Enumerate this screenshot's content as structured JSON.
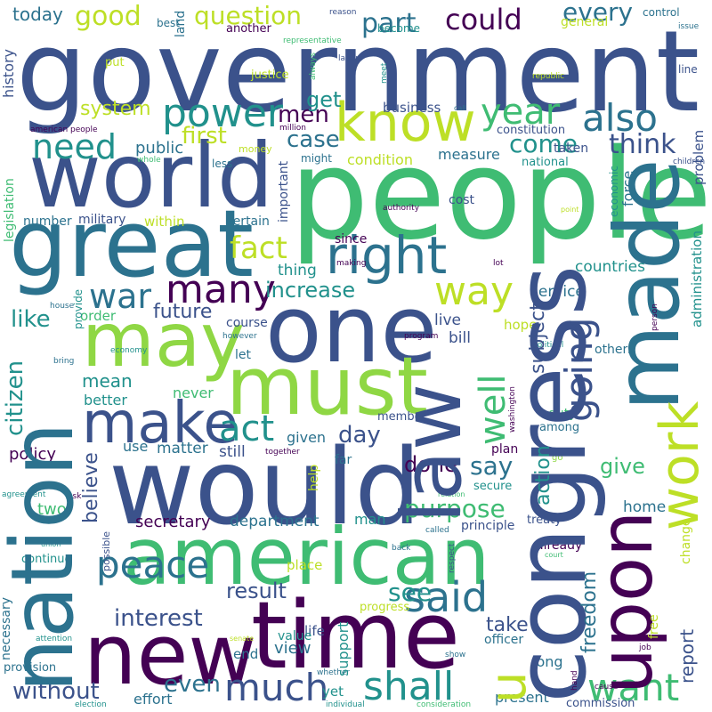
{
  "palette": {
    "dark_purple": "#440154",
    "indigo": "#3b528b",
    "teal_blue": "#2c728e",
    "teal": "#21918c",
    "green": "#3fbc73",
    "lime": "#8fd744",
    "yellow": "#bddf26"
  },
  "words": {
    "government": "government",
    "people": "people",
    "world": "world",
    "great": "great",
    "nation": "nation",
    "congress": "congress",
    "would": "would",
    "american": "american",
    "one": "one",
    "law": "law",
    "must": "must",
    "may": "may",
    "time": "time",
    "new": "new",
    "made": "made",
    "upon": "upon",
    "know": "know",
    "right": "right",
    "work": "work",
    "make": "make",
    "power": "power",
    "year": "year",
    "also": "also",
    "way": "way",
    "many": "many",
    "war": "war",
    "need": "need",
    "peace": "peace",
    "much": "much",
    "shall": "shall",
    "want": "want",
    "said": "said",
    "act": "act",
    "well": "well",
    "u": "u",
    "going": "going",
    "good": "good",
    "question": "question",
    "part": "part",
    "could": "could",
    "every": "every",
    "today": "today",
    "men": "men",
    "case": "case",
    "come": "come",
    "think": "think",
    "first": "first",
    "fact": "fact",
    "increase": "increase",
    "future": "future",
    "system": "system",
    "interest": "interest",
    "without": "without",
    "result": "result",
    "purpose": "purpose",
    "done": "done",
    "say": "say",
    "see": "see",
    "take": "take",
    "even": "even",
    "give": "give",
    "report": "report",
    "freedom": "freedom",
    "action": "action",
    "subject": "subject",
    "citizen": "citizen",
    "believe": "believe",
    "like": "like",
    "mean": "mean",
    "day": "day",
    "get": "get",
    "countries": "countries",
    "service": "service",
    "business": "business",
    "condition": "condition",
    "measure": "measure",
    "constitution": "constitution",
    "public": "public",
    "history": "history",
    "legislation": "legislation",
    "policy": "policy",
    "two": "two",
    "secretary": "secretary",
    "department": "department",
    "problem": "problem",
    "administration": "administration",
    "economic": "economic",
    "force": "force",
    "national": "national",
    "taken": "taken",
    "cost": "cost",
    "number": "number",
    "military": "military",
    "within": "within",
    "certain": "certain",
    "thing": "thing",
    "important": "important",
    "since": "since",
    "live": "live",
    "bill": "bill",
    "hope": "hope",
    "order": "order",
    "course": "course",
    "let": "let",
    "never": "never",
    "better": "better",
    "given": "given",
    "matter": "matter",
    "still": "still",
    "use": "use",
    "continue": "continue",
    "necessary": "necessary",
    "place": "place",
    "life": "life",
    "support": "support",
    "value": "value",
    "view": "view",
    "end": "end",
    "yet": "yet",
    "effort": "effort",
    "present": "present",
    "commission": "commission",
    "long": "long",
    "officer": "officer",
    "home": "home",
    "change": "change",
    "free": "free",
    "already": "already",
    "principle": "principle",
    "treaty": "treaty",
    "man": "man",
    "secure": "secure",
    "plan": "plan",
    "among": "among",
    "duty": "duty",
    "far": "far",
    "help": "help",
    "member": "member",
    "others": "others",
    "washington": "washington",
    "best": "best",
    "land": "land",
    "another": "another",
    "justice": "justice",
    "put": "put",
    "reason": "reason",
    "representative": "representative",
    "become": "become",
    "general": "general",
    "control": "control",
    "issue": "issue",
    "line": "line",
    "republic": "republic",
    "labor": "labor",
    "always": "always",
    "meet": "meet",
    "call": "call",
    "american_people": "american people",
    "million": "million",
    "money": "money",
    "might": "might",
    "less": "less",
    "whole": "whole",
    "children": "children",
    "authority": "authority",
    "point": "point",
    "lot": "lot",
    "making": "making",
    "provide": "provide",
    "house": "house",
    "however": "however",
    "bring": "bring",
    "economy": "economy",
    "program": "program",
    "political": "political",
    "person": "person",
    "together": "together",
    "agreement": "agreement",
    "ask": "ask",
    "relation": "relation",
    "union": "union",
    "possible": "possible",
    "called": "called",
    "back": "back",
    "respect": "respect",
    "go": "go",
    "court": "court",
    "progress": "progress",
    "attention": "attention",
    "senate": "senate",
    "provision": "provision",
    "whether": "whether",
    "show": "show",
    "job": "job",
    "hand": "hand",
    "cause": "cause",
    "election": "election",
    "individual": "individual",
    "consideration": "consideration"
  }
}
